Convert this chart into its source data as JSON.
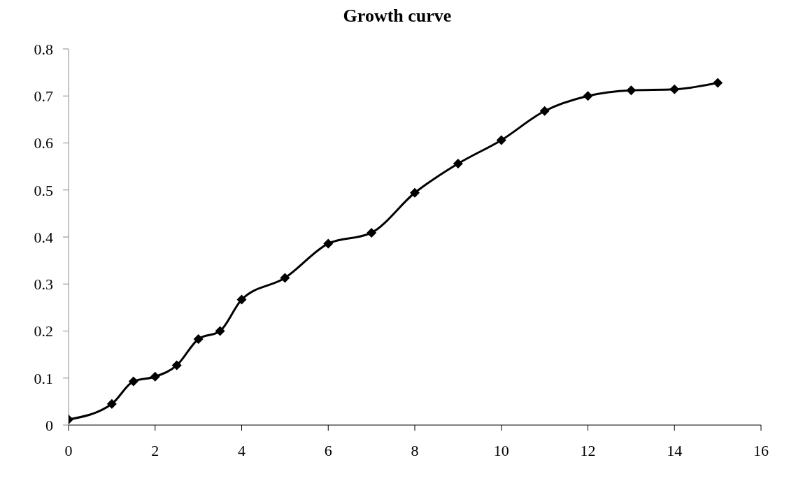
{
  "chart_data": {
    "type": "line",
    "title": "Growth curve",
    "x": [
      0,
      1,
      1.5,
      2,
      2.5,
      3,
      3.5,
      4,
      5,
      6,
      7,
      8,
      9,
      10,
      11,
      12,
      13,
      14,
      15
    ],
    "values": [
      0.012,
      0.045,
      0.093,
      0.103,
      0.127,
      0.183,
      0.2,
      0.267,
      0.313,
      0.386,
      0.409,
      0.494,
      0.556,
      0.606,
      0.668,
      0.7,
      0.712,
      0.714,
      0.728
    ],
    "color": "#000000",
    "marker": "diamond",
    "line_style": "solid",
    "grid": false,
    "xlim": [
      0,
      16
    ],
    "xticks": [
      0,
      2,
      4,
      6,
      8,
      10,
      12,
      14,
      16
    ],
    "ylim": [
      0,
      0.8
    ],
    "yticks": [
      0,
      0.1,
      0.2,
      0.3,
      0.4,
      0.5,
      0.6,
      0.7,
      0.8
    ]
  }
}
